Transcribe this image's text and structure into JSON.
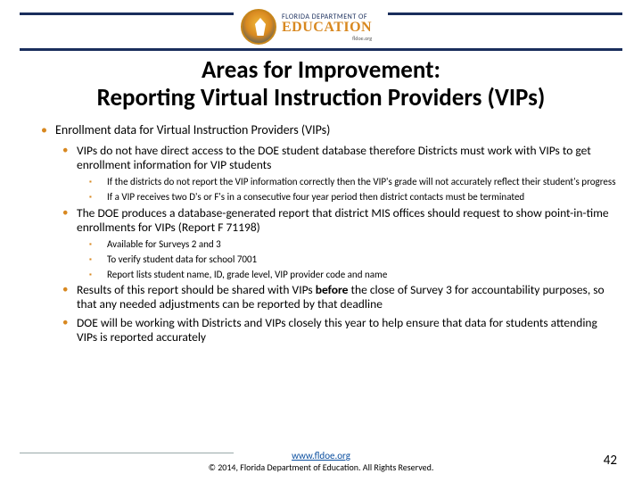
{
  "logo": {
    "top_text": "FLORIDA DEPARTMENT OF",
    "main_text": "EDUCATION",
    "sub_text": "fldoe.org"
  },
  "title_line1": "Areas for Improvement:",
  "title_line2": "Reporting Virtual Instruction Providers (VIPs)",
  "l1_a": "Enrollment data for Virtual Instruction Providers (VIPs)",
  "l2_a": "VIPs do not have direct access to the DOE student database therefore Districts must work with VIPs to get enrollment information for VIP students",
  "l3_a": "If the districts do not report the VIP information correctly then the VIP's grade will not accurately reflect their student's progress",
  "l3_b": "If a VIP receives two D's or F's in a consecutive four year period then district contacts must be terminated",
  "l2_b": "The DOE produces a database-generated report that district MIS offices should request to show point-in-time enrollments for VIPs (Report F 71198)",
  "l3_c": "Available for Surveys 2 and 3",
  "l3_d": "To verify student data for school 7001",
  "l3_e": "Report lists student name, ID, grade level, VIP provider code and name",
  "l2_c_pre": "Results of this report should be shared with VIPs ",
  "l2_c_bold": "before ",
  "l2_c_post": "the close of Survey 3 for accountability purposes, so that any needed adjustments can be reported by that deadline",
  "l2_d": "DOE will be working with Districts and VIPs closely this year to help ensure that data for students attending VIPs is reported accurately",
  "footer_link": "www.fldoe.org",
  "footer_copy": "© 2014, Florida Department of Education. All Rights Reserved.",
  "page_number": "42",
  "colors": {
    "navy": "#1a2e5c",
    "orange": "#d88820",
    "link": "#0b4fa0"
  }
}
